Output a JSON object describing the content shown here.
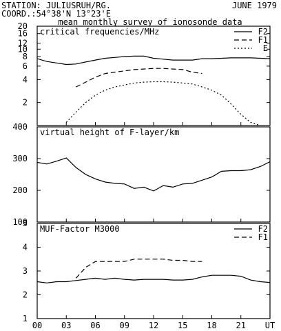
{
  "header": {
    "station": "STATION: JULIUSRUH/RG.",
    "coord": "COORD.:54°38'N 13°23'E",
    "date": "JUNE 1979",
    "subtitle": "mean monthly survey of ionosonde data"
  },
  "x_axis": {
    "ticks": [
      {
        "hour": 0,
        "label": "00"
      },
      {
        "hour": 3,
        "label": "03"
      },
      {
        "hour": 6,
        "label": "06"
      },
      {
        "hour": 9,
        "label": "09"
      },
      {
        "hour": 12,
        "label": "12"
      },
      {
        "hour": 15,
        "label": "15"
      },
      {
        "hour": 18,
        "label": "18"
      },
      {
        "hour": 21,
        "label": "21"
      },
      {
        "hour": 24,
        "label": "UT"
      }
    ]
  },
  "chart_data": [
    {
      "type": "line",
      "title": "critical frequencies/MHz",
      "scale": "log",
      "ylim": [
        1,
        20
      ],
      "yticks": [
        2,
        4,
        6,
        8,
        10,
        12,
        16,
        20
      ],
      "xlim": [
        0,
        24
      ],
      "legend": "top-right",
      "series": [
        {
          "name": "F2",
          "style": "solid",
          "x": [
            0,
            1,
            2,
            3,
            4,
            5,
            6,
            7,
            8,
            9,
            10,
            11,
            12,
            13,
            14,
            15,
            16,
            17,
            18,
            19,
            20,
            21,
            22,
            23,
            24
          ],
          "values": [
            7.5,
            6.9,
            6.6,
            6.3,
            6.4,
            6.8,
            7.2,
            7.6,
            7.8,
            8.0,
            8.1,
            8.1,
            7.6,
            7.4,
            7.2,
            7.2,
            7.2,
            7.5,
            7.5,
            7.6,
            7.7,
            7.7,
            7.7,
            7.6,
            7.5
          ]
        },
        {
          "name": "F1",
          "style": "dashed",
          "x": [
            4,
            5,
            6,
            7,
            8,
            9,
            10,
            11,
            12,
            13,
            14,
            15,
            16,
            17
          ],
          "values": [
            3.2,
            3.7,
            4.3,
            4.8,
            5.0,
            5.2,
            5.4,
            5.5,
            5.6,
            5.6,
            5.5,
            5.4,
            5.0,
            4.8
          ]
        },
        {
          "name": "E",
          "style": "dotted",
          "x": [
            3,
            4,
            5,
            6,
            7,
            8,
            9,
            10,
            11,
            12,
            13,
            14,
            15,
            16,
            17,
            18,
            19,
            20,
            21,
            22,
            23
          ],
          "values": [
            1.1,
            1.5,
            2.0,
            2.5,
            2.9,
            3.2,
            3.4,
            3.6,
            3.7,
            3.75,
            3.75,
            3.7,
            3.6,
            3.5,
            3.2,
            2.9,
            2.5,
            1.9,
            1.4,
            1.1,
            1.0
          ]
        }
      ]
    },
    {
      "type": "line",
      "title": "virtual height of F-layer/km",
      "ylim": [
        100,
        400
      ],
      "yticks": [
        100,
        200,
        300,
        400
      ],
      "xlim": [
        0,
        24
      ],
      "series": [
        {
          "style": "solid",
          "x": [
            0,
            1,
            2,
            3,
            4,
            5,
            6,
            7,
            8,
            9,
            10,
            11,
            12,
            13,
            14,
            15,
            16,
            17,
            18,
            19,
            20,
            21,
            22,
            23,
            24
          ],
          "values": [
            288,
            283,
            292,
            302,
            272,
            250,
            236,
            226,
            222,
            220,
            206,
            210,
            198,
            215,
            210,
            220,
            222,
            232,
            242,
            260,
            262,
            262,
            265,
            275,
            290
          ]
        }
      ]
    },
    {
      "type": "line",
      "title": "MUF-Factor M3000",
      "ylim": [
        1,
        5
      ],
      "yticks": [
        1,
        2,
        3,
        4,
        5
      ],
      "xlim": [
        0,
        24
      ],
      "legend": "top-right",
      "series": [
        {
          "name": "F2",
          "style": "solid",
          "x": [
            0,
            1,
            2,
            3,
            4,
            5,
            6,
            7,
            8,
            9,
            10,
            11,
            12,
            13,
            14,
            15,
            16,
            17,
            18,
            19,
            20,
            21,
            22,
            23,
            24
          ],
          "values": [
            2.55,
            2.5,
            2.55,
            2.55,
            2.6,
            2.65,
            2.7,
            2.65,
            2.7,
            2.65,
            2.62,
            2.65,
            2.65,
            2.65,
            2.62,
            2.62,
            2.65,
            2.75,
            2.82,
            2.82,
            2.82,
            2.78,
            2.62,
            2.55,
            2.52
          ]
        },
        {
          "name": "F1",
          "style": "dashed",
          "x": [
            4,
            5,
            6,
            7,
            8,
            9,
            10,
            11,
            12,
            13,
            14,
            15,
            16,
            17
          ],
          "values": [
            2.7,
            3.15,
            3.4,
            3.4,
            3.4,
            3.4,
            3.5,
            3.5,
            3.5,
            3.5,
            3.45,
            3.45,
            3.4,
            3.4
          ]
        }
      ]
    }
  ]
}
